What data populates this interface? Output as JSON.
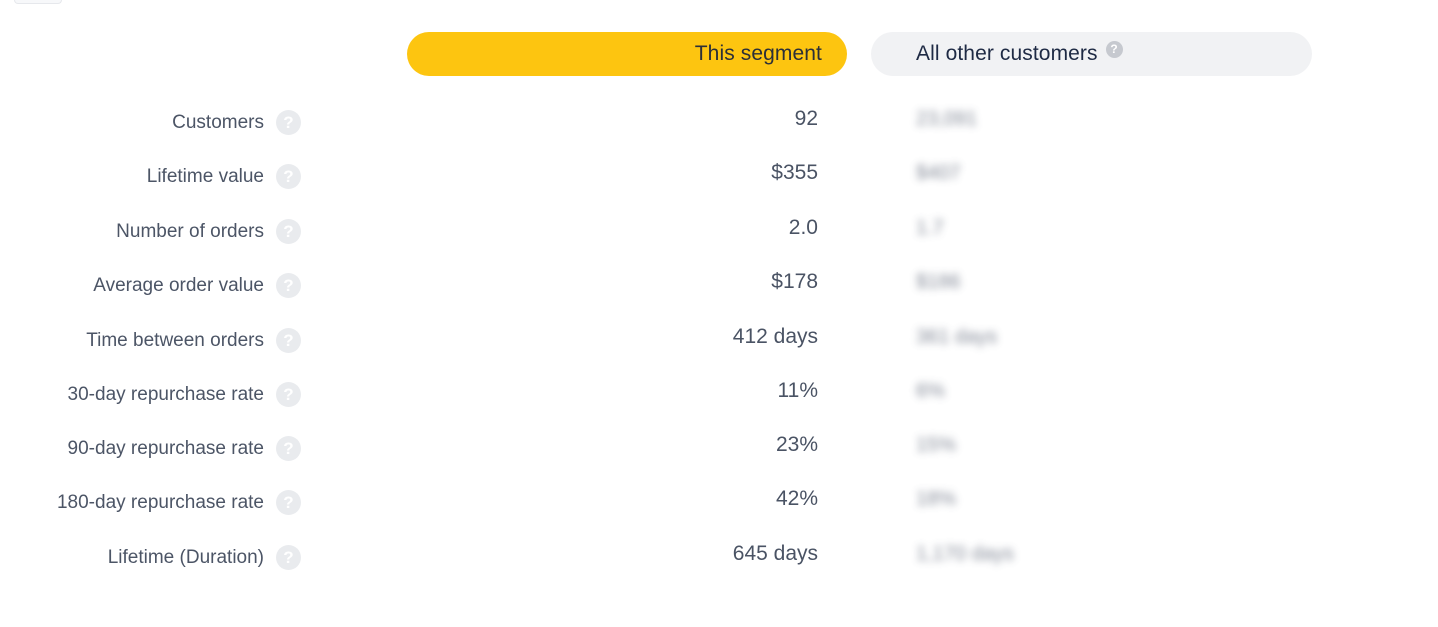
{
  "header": {
    "segment_label": "This segment",
    "others_label": "All other customers",
    "others_help_icon": "question-circle-icon"
  },
  "colors": {
    "segment_pill": "#fdc510",
    "others_pill": "#f1f2f4",
    "label_text": "#4c5566",
    "value_text": "#4a5364",
    "help_icon_bg": "#e9ebee"
  },
  "rows": [
    {
      "label": "Customers",
      "segment_value": "92",
      "other_value": "23,091"
    },
    {
      "label": "Lifetime value",
      "segment_value": "$355",
      "other_value": "$407"
    },
    {
      "label": "Number of orders",
      "segment_value": "2.0",
      "other_value": "1.7"
    },
    {
      "label": "Average order value",
      "segment_value": "$178",
      "other_value": "$186"
    },
    {
      "label": "Time between orders",
      "segment_value": "412 days",
      "other_value": "361 days"
    },
    {
      "label": "30-day repurchase rate",
      "segment_value": "11%",
      "other_value": "6%"
    },
    {
      "label": "90-day repurchase rate",
      "segment_value": "23%",
      "other_value": "15%"
    },
    {
      "label": "180-day repurchase rate",
      "segment_value": "42%",
      "other_value": "18%"
    },
    {
      "label": "Lifetime (Duration)",
      "segment_value": "645 days",
      "other_value": "1,170 days"
    }
  ]
}
